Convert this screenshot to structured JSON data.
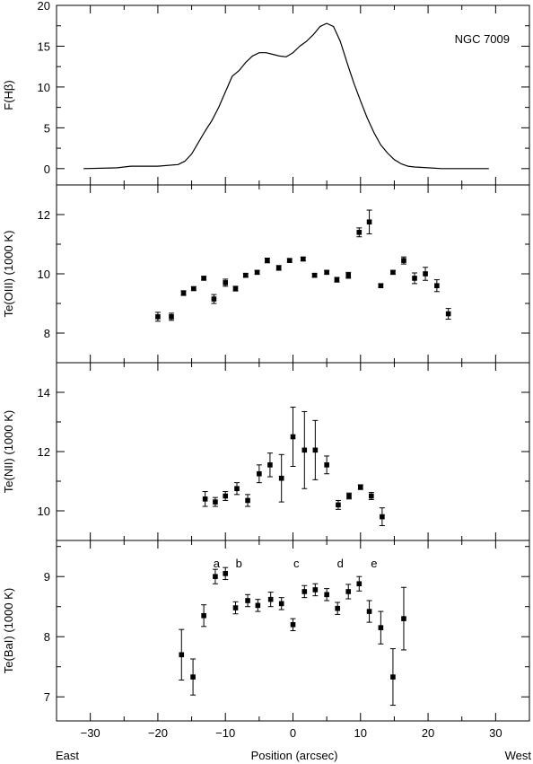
{
  "figure": {
    "label": "NGC 7009",
    "shared_x": {
      "label": "Position (arcsec)",
      "range": [
        -35,
        35
      ],
      "ticks": [
        "−30",
        "−20",
        "−10",
        "0",
        "10",
        "20",
        "30"
      ],
      "left_label": "East",
      "right_label": "West"
    }
  },
  "chart_data": [
    {
      "type": "line",
      "panel": "F(Hβ)",
      "ylabel": "F(Hβ)",
      "ylim": [
        -2,
        20
      ],
      "yticks": [
        "0",
        "5",
        "10",
        "15",
        "20"
      ],
      "annotations": [
        "NGC 7009"
      ],
      "series": [
        {
          "x": [
            -31,
            -26,
            -24,
            -20,
            -17,
            -16,
            -15,
            -14,
            -13,
            -12,
            -11,
            -10,
            -9,
            -8,
            -7,
            -6,
            -5,
            -4,
            -3,
            -2,
            -1,
            0,
            1,
            2,
            3,
            4,
            5,
            6,
            7,
            8,
            9,
            10,
            11,
            12,
            13,
            14,
            15,
            16,
            17,
            18,
            20,
            22,
            25,
            29
          ],
          "y": [
            0.0,
            0.1,
            0.3,
            0.3,
            0.5,
            0.9,
            1.8,
            3.2,
            4.6,
            5.9,
            7.5,
            9.4,
            11.3,
            12.0,
            13.0,
            13.8,
            14.2,
            14.2,
            14.0,
            13.8,
            13.7,
            14.2,
            15.0,
            15.6,
            16.4,
            17.4,
            17.8,
            17.4,
            15.6,
            13.0,
            10.5,
            8.3,
            6.2,
            4.4,
            2.9,
            1.9,
            1.1,
            0.6,
            0.3,
            0.2,
            0.1,
            0.0,
            0.0,
            0.0
          ]
        }
      ]
    },
    {
      "type": "scatter",
      "panel": "Te(OIII)",
      "ylabel": "Te(OIII) (1000 K)",
      "ylim": [
        7,
        13
      ],
      "yticks": [
        "8",
        "10",
        "12"
      ],
      "series": [
        {
          "x": [
            -20,
            -18,
            -16.2,
            -14.7,
            -13.2,
            -11.7,
            -10,
            -8.5,
            -7,
            -5.3,
            -3.8,
            -2.1,
            -0.5,
            1.5,
            3.2,
            5,
            6.5,
            8.2,
            9.8,
            11.3,
            13,
            14.8,
            16.4,
            18,
            19.6,
            21.3,
            23
          ],
          "y": [
            8.55,
            8.55,
            9.35,
            9.5,
            9.85,
            9.15,
            9.7,
            9.5,
            9.95,
            10.05,
            10.45,
            10.2,
            10.45,
            10.5,
            9.95,
            10.05,
            9.8,
            9.95,
            11.4,
            11.75,
            9.6,
            10.05,
            10.45,
            9.85,
            10.0,
            9.6,
            8.65
          ],
          "err": [
            0.15,
            0.12,
            0.08,
            0.06,
            0.06,
            0.15,
            0.12,
            0.08,
            0.06,
            0.06,
            0.08,
            0.08,
            0.06,
            0.06,
            0.06,
            0.06,
            0.08,
            0.1,
            0.15,
            0.4,
            0.05,
            0.06,
            0.12,
            0.18,
            0.22,
            0.2,
            0.18
          ]
        }
      ]
    },
    {
      "type": "scatter",
      "panel": "Te(NII)",
      "ylabel": "Te(NII) (1000 K)",
      "ylim": [
        9,
        15
      ],
      "yticks": [
        "10",
        "12",
        "14"
      ],
      "series": [
        {
          "x": [
            -13,
            -11.5,
            -10,
            -8.3,
            -6.7,
            -5,
            -3.4,
            -1.7,
            0,
            1.7,
            3.3,
            5,
            6.7,
            8.3,
            10,
            11.6,
            13.2
          ],
          "y": [
            10.4,
            10.3,
            10.5,
            10.75,
            10.35,
            11.25,
            11.55,
            11.1,
            12.5,
            12.05,
            12.05,
            11.55,
            10.2,
            10.5,
            10.8,
            10.5,
            9.8
          ],
          "err": [
            0.25,
            0.15,
            0.15,
            0.2,
            0.2,
            0.3,
            0.4,
            0.8,
            1.0,
            1.3,
            1.0,
            0.3,
            0.15,
            0.1,
            0.08,
            0.12,
            0.3
          ]
        }
      ]
    },
    {
      "type": "scatter",
      "panel": "Te(BaI)",
      "ylabel": "Te(BaI) (1000 K)",
      "ylim": [
        6.6,
        9.6
      ],
      "yticks": [
        "7",
        "8",
        "9"
      ],
      "annotations": [
        {
          "text": "a",
          "x": -11.3
        },
        {
          "text": "b",
          "x": -8
        },
        {
          "text": "c",
          "x": 0.5
        },
        {
          "text": "d",
          "x": 7
        },
        {
          "text": "e",
          "x": 12
        }
      ],
      "series": [
        {
          "x": [
            -16.5,
            -14.8,
            -13.2,
            -11.5,
            -10,
            -8.5,
            -6.7,
            -5.2,
            -3.3,
            -1.7,
            0,
            1.7,
            3.3,
            5,
            6.6,
            8.2,
            9.8,
            11.3,
            13,
            14.8,
            16.4
          ],
          "y": [
            7.7,
            7.33,
            8.35,
            9.0,
            9.05,
            8.48,
            8.6,
            8.52,
            8.62,
            8.55,
            8.2,
            8.75,
            8.78,
            8.7,
            8.47,
            8.75,
            8.88,
            8.42,
            8.15,
            7.33,
            8.3
          ],
          "err": [
            0.42,
            0.3,
            0.18,
            0.12,
            0.1,
            0.1,
            0.1,
            0.1,
            0.12,
            0.1,
            0.1,
            0.1,
            0.1,
            0.1,
            0.1,
            0.12,
            0.12,
            0.18,
            0.27,
            0.47,
            0.52
          ]
        }
      ]
    }
  ]
}
